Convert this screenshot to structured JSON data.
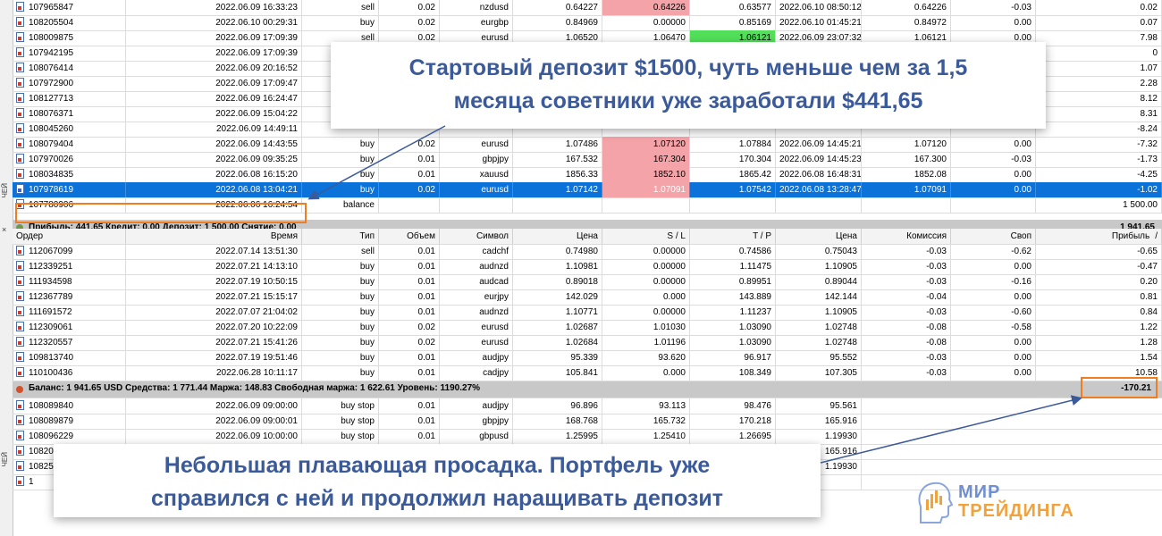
{
  "side_labels": [
    "ЧЕЙ",
    "ЧЕЙ"
  ],
  "history_rows": [
    [
      "107965847",
      "2022.06.09 16:33:23",
      "sell",
      "0.02",
      "nzdusd",
      "0.64227",
      "0.64226",
      "0.63577",
      "2022.06.10 08:50:12",
      "0.64226",
      "-0.03",
      "0.02"
    ],
    [
      "108205504",
      "2022.06.10 00:29:31",
      "buy",
      "0.02",
      "eurgbp",
      "0.84969",
      "0.00000",
      "0.85169",
      "2022.06.10 01:45:21",
      "0.84972",
      "0.00",
      "0.07"
    ],
    [
      "108009875",
      "2022.06.09 17:09:39",
      "sell",
      "0.02",
      "eurusd",
      "1.06520",
      "1.06470",
      "1.06121",
      "2022.06.09 23:07:32",
      "1.06121",
      "0.00",
      "7.98"
    ],
    [
      "107942195",
      "2022.06.09 17:09:39",
      "",
      "",
      "",
      "",
      "",
      "",
      "",
      "",
      "",
      "0"
    ],
    [
      "108076414",
      "2022.06.09 20:16:52",
      "",
      "",
      "",
      "",
      "",
      "",
      "",
      "",
      "",
      "1.07"
    ],
    [
      "107972900",
      "2022.06.09 17:09:47",
      "",
      "",
      "",
      "",
      "",
      "",
      "",
      "",
      "",
      "2.28"
    ],
    [
      "108127713",
      "2022.06.09 16:24:47",
      "",
      "",
      "",
      "",
      "",
      "",
      "",
      "",
      "",
      "8.12"
    ],
    [
      "108076371",
      "2022.06.09 15:04:22",
      "",
      "",
      "",
      "",
      "",
      "",
      "",
      "",
      "",
      "8.31"
    ],
    [
      "108045260",
      "2022.06.09 14:49:11",
      "",
      "",
      "",
      "",
      "",
      "",
      "",
      "",
      "",
      "-8.24"
    ],
    [
      "108079404",
      "2022.06.09 14:43:55",
      "buy",
      "0.02",
      "eurusd",
      "1.07486",
      "1.07120",
      "1.07884",
      "2022.06.09 14:45:21",
      "1.07120",
      "0.00",
      "-7.32"
    ],
    [
      "107970026",
      "2022.06.09 09:35:25",
      "buy",
      "0.01",
      "gbpjpy",
      "167.532",
      "167.304",
      "170.304",
      "2022.06.09 14:45:23",
      "167.300",
      "-0.03",
      "-1.73"
    ],
    [
      "108034835",
      "2022.06.08 16:15:20",
      "buy",
      "0.01",
      "xauusd",
      "1856.33",
      "1852.10",
      "1865.42",
      "2022.06.08 16:48:31",
      "1852.08",
      "0.00",
      "-4.25"
    ],
    [
      "107978619",
      "2022.06.08 13:04:21",
      "buy",
      "0.02",
      "eurusd",
      "1.07142",
      "1.07091",
      "1.07542",
      "2022.06.08 13:28:47",
      "1.07091",
      "0.00",
      "-1.02"
    ],
    [
      "107780906",
      "2022.06.06 16:24:54",
      "balance",
      "",
      "",
      "",
      "",
      "",
      "",
      "",
      "",
      "1 500.00"
    ]
  ],
  "history_summary": {
    "text": "Прибыль: 441.65  Кредит: 0.00  Депозит: 1 500.00  Снятие: 0.00",
    "total": "1 941.65"
  },
  "open_headers": [
    "Ордер",
    "Время",
    "Тип",
    "Объем",
    "Символ",
    "Цена",
    "S / L",
    "T / P",
    "Цена",
    "Комиссия",
    "Своп",
    "Прибыль"
  ],
  "sort_indicator": "/",
  "open_rows": [
    [
      "112067099",
      "2022.07.14 13:51:30",
      "sell",
      "0.01",
      "cadchf",
      "0.74980",
      "0.00000",
      "0.74586",
      "0.75043",
      "-0.03",
      "-0.62",
      "-0.65"
    ],
    [
      "112339251",
      "2022.07.21 14:13:10",
      "buy",
      "0.01",
      "audnzd",
      "1.10981",
      "0.00000",
      "1.11475",
      "1.10905",
      "-0.03",
      "0.00",
      "-0.47"
    ],
    [
      "111934598",
      "2022.07.19 10:50:15",
      "buy",
      "0.01",
      "audcad",
      "0.89018",
      "0.00000",
      "0.89951",
      "0.89044",
      "-0.03",
      "-0.16",
      "0.20"
    ],
    [
      "112367789",
      "2022.07.21 15:15:17",
      "buy",
      "0.01",
      "eurjpy",
      "142.029",
      "0.000",
      "143.889",
      "142.144",
      "-0.04",
      "0.00",
      "0.81"
    ],
    [
      "111691572",
      "2022.07.07 21:04:02",
      "buy",
      "0.01",
      "audnzd",
      "1.10771",
      "0.00000",
      "1.11237",
      "1.10905",
      "-0.03",
      "-0.60",
      "0.84"
    ],
    [
      "112309061",
      "2022.07.20 10:22:09",
      "buy",
      "0.02",
      "eurusd",
      "1.02687",
      "1.01030",
      "1.03090",
      "1.02748",
      "-0.08",
      "-0.58",
      "1.22"
    ],
    [
      "112320557",
      "2022.07.21 15:41:26",
      "buy",
      "0.02",
      "eurusd",
      "1.02684",
      "1.01196",
      "1.03090",
      "1.02748",
      "-0.08",
      "0.00",
      "1.28"
    ],
    [
      "109813740",
      "2022.07.19 19:51:46",
      "buy",
      "0.01",
      "audjpy",
      "95.339",
      "93.620",
      "96.917",
      "95.552",
      "-0.03",
      "0.00",
      "1.54"
    ],
    [
      "110100436",
      "2022.06.28 10:11:17",
      "buy",
      "0.01",
      "cadjpy",
      "105.841",
      "0.000",
      "108.349",
      "107.305",
      "-0.03",
      "0.00",
      "10.58"
    ]
  ],
  "open_summary": {
    "text": "Баланс: 1 941.65 USD  Средства: 1 771.44  Маржа: 148.83  Свободная маржа: 1 622.61  Уровень: 1190.27%",
    "total": "-170.21"
  },
  "pending_rows": [
    [
      "108089840",
      "2022.06.09 09:00:00",
      "buy stop",
      "0.01",
      "audjpy",
      "96.896",
      "93.113",
      "98.476",
      "95.561"
    ],
    [
      "108089879",
      "2022.06.09 09:00:01",
      "buy stop",
      "0.01",
      "gbpjpy",
      "168.768",
      "165.732",
      "170.218",
      "165.916"
    ],
    [
      "108096229",
      "2022.06.09 10:00:00",
      "buy stop",
      "0.01",
      "gbpusd",
      "1.25995",
      "1.25410",
      "1.26695",
      "1.19930"
    ],
    [
      "10820",
      "",
      "",
      "",
      "",
      "",
      "",
      "",
      "165.916"
    ],
    [
      "10825",
      "",
      "",
      "",
      "",
      "",
      "",
      "",
      "1.19930"
    ],
    [
      "1",
      "",
      "",
      "",
      "",
      "",
      "",
      "",
      ""
    ]
  ],
  "callout_top": {
    "line1": "Стартовый депозит $1500, чуть меньше чем за 1,5",
    "line2": "месяца советники уже заработали $441,65"
  },
  "callout_bottom": {
    "line1": "Небольшая плавающая просадка. Портфель уже",
    "line2": "справился с ней и продолжил наращивать депозит"
  },
  "logo": {
    "line1": "МИР",
    "line2": "ТРЕЙДИНГА"
  },
  "colors": {
    "accent_orange": "#f07d20",
    "selected_blue": "#0a72d8",
    "callout_text": "#3b5a9a",
    "loss_pink": "#f4a3a8",
    "profit_green": "#52e05a"
  }
}
